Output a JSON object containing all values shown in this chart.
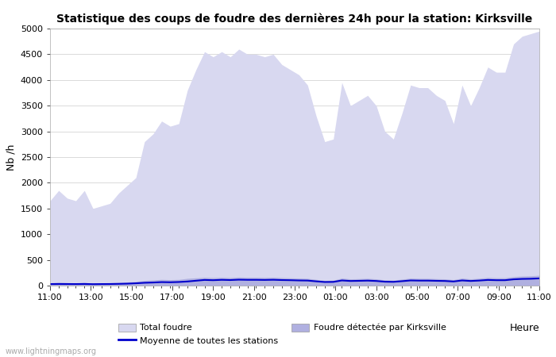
{
  "title": "Statistique des coups de foudre des dernières 24h pour la station: Kirksville",
  "xlabel": "Heure",
  "ylabel": "Nb /h",
  "ylim": [
    0,
    5000
  ],
  "yticks": [
    0,
    500,
    1000,
    1500,
    2000,
    2500,
    3000,
    3500,
    4000,
    4500,
    5000
  ],
  "x_labels": [
    "11:00",
    "13:00",
    "15:00",
    "17:00",
    "19:00",
    "21:00",
    "23:00",
    "01:00",
    "03:00",
    "05:00",
    "07:00",
    "09:00",
    "11:00"
  ],
  "background_color": "#ffffff",
  "fill_color_total": "#d8d8f0",
  "fill_color_kirksville": "#b0b0e0",
  "line_color_moyenne": "#0000cc",
  "watermark": "www.lightningmaps.org",
  "total_foudre": [
    1650,
    1850,
    1700,
    1650,
    1850,
    1500,
    1550,
    1600,
    1800,
    1950,
    2100,
    2800,
    2950,
    3200,
    3100,
    3150,
    3800,
    4200,
    4550,
    4450,
    4550,
    4450,
    4600,
    4500,
    4500,
    4450,
    4500,
    4300,
    4200,
    4100,
    3900,
    3300,
    2800,
    2850,
    3950,
    3500,
    3600,
    3700,
    3500,
    3000,
    2850,
    3350,
    3900,
    3850,
    3850,
    3700,
    3600,
    3150,
    3900,
    3500,
    3850,
    4250,
    4150,
    4150,
    4700,
    4850,
    4900,
    4950
  ],
  "kirksville_foudre": [
    50,
    60,
    55,
    50,
    60,
    45,
    50,
    55,
    60,
    70,
    80,
    100,
    110,
    120,
    115,
    120,
    140,
    150,
    160,
    155,
    160,
    155,
    165,
    160,
    160,
    158,
    162,
    155,
    150,
    145,
    140,
    120,
    100,
    105,
    145,
    130,
    135,
    140,
    130,
    110,
    105,
    125,
    145,
    140,
    140,
    135,
    130,
    115,
    145,
    130,
    142,
    158,
    152,
    152,
    175,
    185,
    190,
    200
  ],
  "moyenne": [
    30,
    32,
    31,
    30,
    32,
    28,
    30,
    31,
    34,
    38,
    45,
    55,
    60,
    68,
    65,
    70,
    80,
    95,
    110,
    105,
    112,
    108,
    115,
    112,
    112,
    110,
    113,
    108,
    105,
    100,
    98,
    83,
    70,
    72,
    100,
    90,
    93,
    97,
    90,
    76,
    73,
    86,
    100,
    97,
    97,
    93,
    90,
    80,
    100,
    90,
    98,
    110,
    105,
    105,
    122,
    130,
    133,
    140
  ]
}
